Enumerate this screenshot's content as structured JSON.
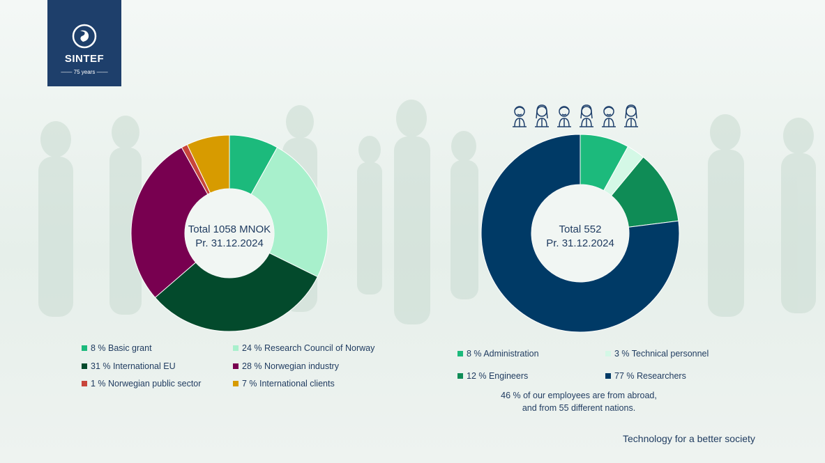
{
  "logo": {
    "name": "SINTEF",
    "tagline": "75 years"
  },
  "chart_data": [
    {
      "type": "donut",
      "center": {
        "line1": "Total 1058 MNOK",
        "line2": "Pr. 31.12.2024"
      },
      "series": [
        {
          "label": "8 % Basic grant",
          "value": 8,
          "color": "#1cba7c"
        },
        {
          "label": "24 % Research Council of Norway",
          "value": 24,
          "color": "#a8f0cc"
        },
        {
          "label": "31 % International EU",
          "value": 31,
          "color": "#034a2c"
        },
        {
          "label": "28 % Norwegian industry",
          "value": 28,
          "color": "#780050"
        },
        {
          "label": "1 % Norwegian public sector",
          "value": 1,
          "color": "#c8453b"
        },
        {
          "label": "7 % International clients",
          "value": 7,
          "color": "#d79b00"
        }
      ]
    },
    {
      "type": "donut",
      "center": {
        "line1": "Total 552",
        "line2": "Pr. 31.12.2024"
      },
      "series": [
        {
          "label": "8 % Administration",
          "value": 8,
          "color": "#1cba7c"
        },
        {
          "label": "3 % Technical personnel",
          "value": 3,
          "color": "#d4f8e6"
        },
        {
          "label": "12 % Engineers",
          "value": 12,
          "color": "#0f8c56"
        },
        {
          "label": "77 % Researchers",
          "value": 77,
          "color": "#003a66"
        }
      ]
    }
  ],
  "note": {
    "line1": "46 % of our employees are from abroad,",
    "line2": "and from 55 different nations."
  },
  "tagline": "Technology for a better society",
  "icons": [
    "male-person-icon",
    "female-person-icon",
    "male-person-icon",
    "female-person-icon",
    "male-person-icon",
    "female-person-icon"
  ]
}
